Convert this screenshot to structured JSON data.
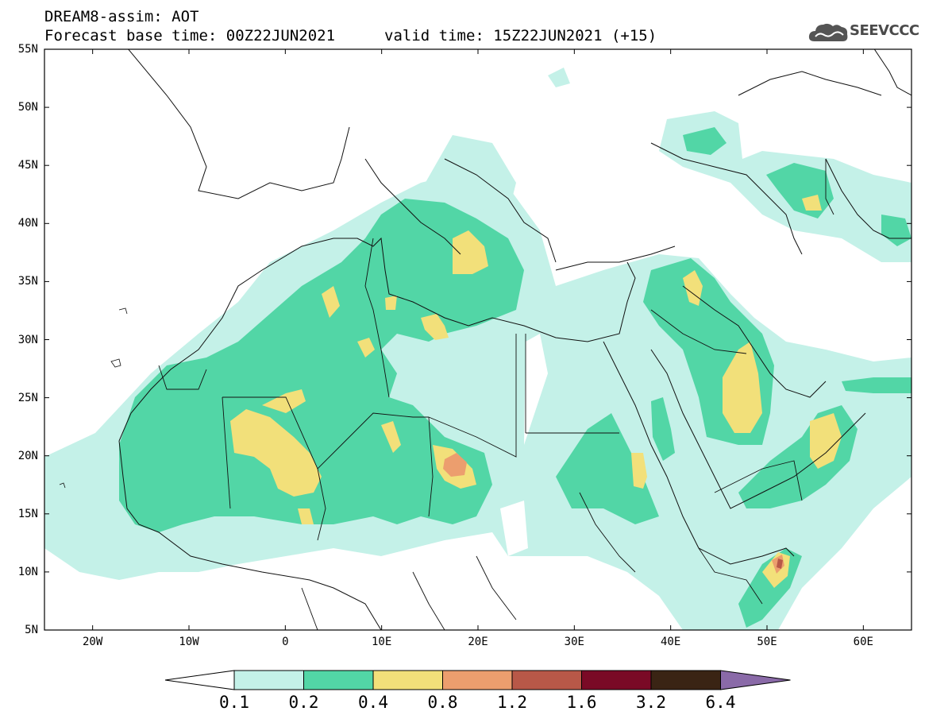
{
  "header": {
    "title_line1": "DREAM8-assim: AOT",
    "title_line2": "Forecast base time: 00Z22JUN2021",
    "valid_time": "valid time: 15Z22JUN2021 (+15)"
  },
  "logo": {
    "text": "SEEVCCC",
    "icon": "cloud-icon"
  },
  "map": {
    "lat_labels": [
      "55N",
      "50N",
      "45N",
      "40N",
      "35N",
      "30N",
      "25N",
      "20N",
      "15N",
      "10N",
      "5N"
    ],
    "lon_labels": [
      "20W",
      "10W",
      "0",
      "10E",
      "20E",
      "30E",
      "40E",
      "50E",
      "60E"
    ],
    "lat_range": [
      5,
      55
    ],
    "lon_range": [
      -25,
      65
    ]
  },
  "colorbar": {
    "labels": [
      "0.1",
      "0.2",
      "0.4",
      "0.8",
      "1.2",
      "1.6",
      "3.2",
      "6.4"
    ],
    "colors": [
      "#c4f1e8",
      "#52d6a6",
      "#f2e07a",
      "#ec9e6e",
      "#b85848",
      "#7a0a26",
      "#3a2414",
      "#8a6aa8"
    ]
  },
  "colors": {
    "level1": "#c4f1e8",
    "level2": "#52d6a6",
    "level3": "#f2e07a",
    "level4": "#ec9e6e",
    "level5": "#b85848"
  }
}
